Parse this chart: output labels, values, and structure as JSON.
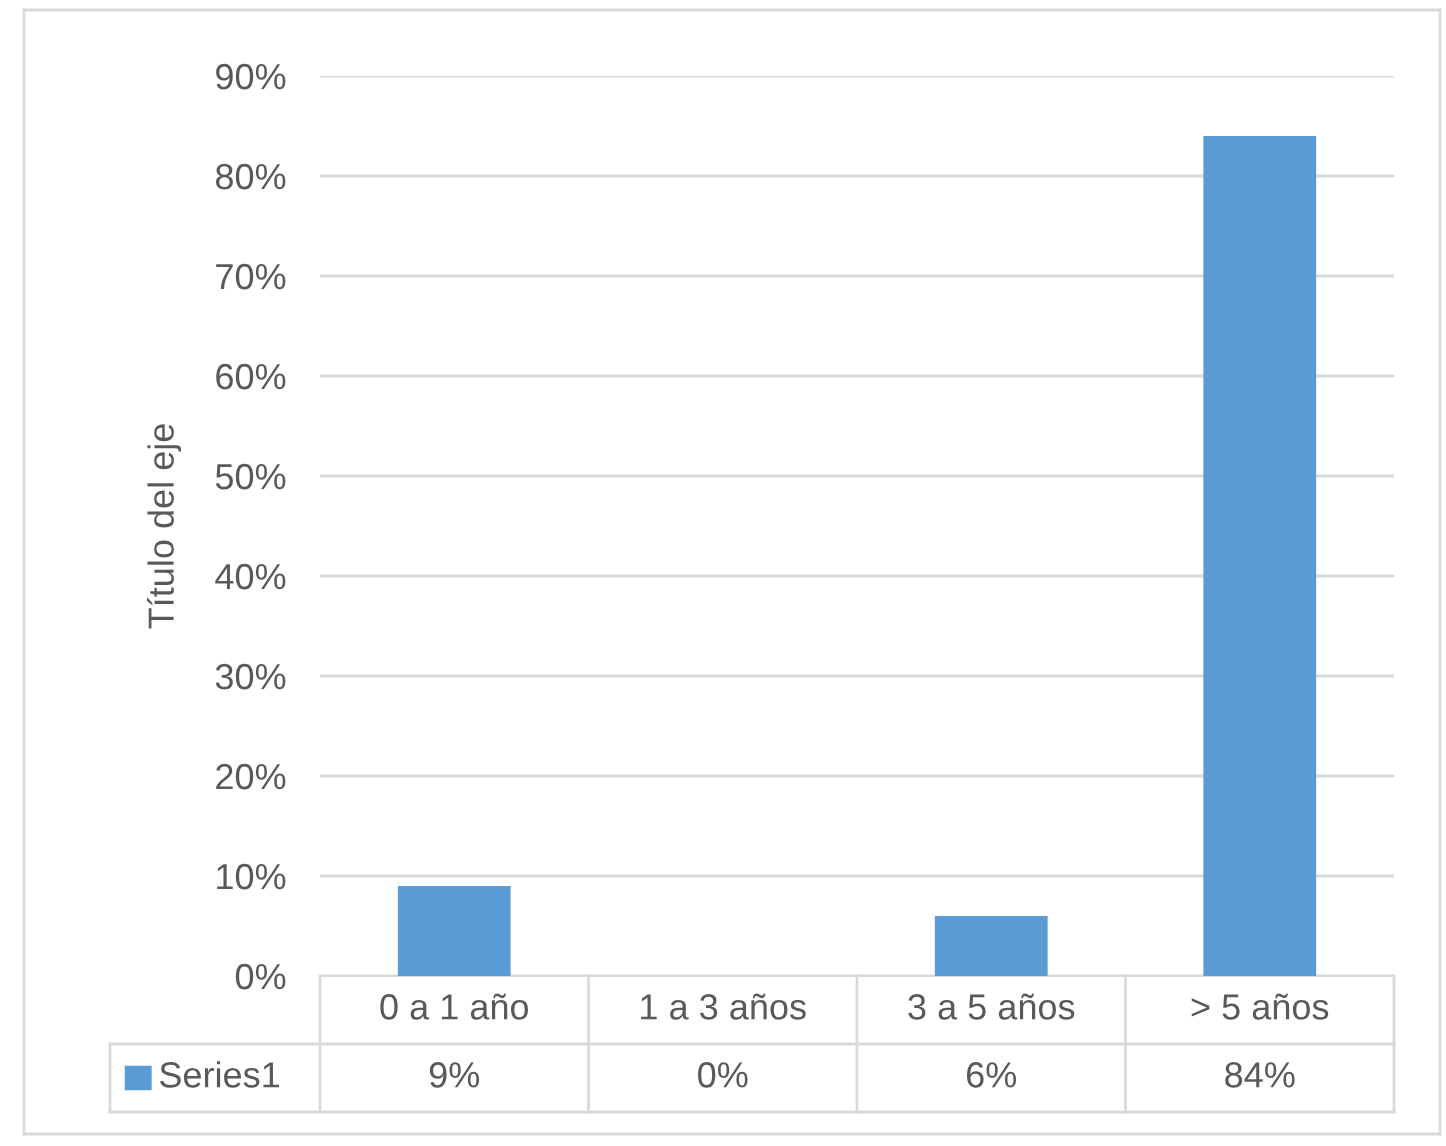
{
  "chart_data": {
    "type": "bar",
    "ylabel": "Título del eje",
    "categories": [
      "0 a 1 año",
      "1 a 3 años",
      "3 a 5 años",
      "> 5 años"
    ],
    "series": [
      {
        "name": "Series1",
        "color": "#5b9bd5",
        "values": [
          9,
          0,
          6,
          84
        ]
      }
    ],
    "value_labels": [
      "9%",
      "0%",
      "6%",
      "84%"
    ],
    "ylim": [
      0,
      90
    ],
    "yticks": [
      {
        "value": 0,
        "label": "0%"
      },
      {
        "value": 10,
        "label": "10%"
      },
      {
        "value": 20,
        "label": "20%"
      },
      {
        "value": 30,
        "label": "30%"
      },
      {
        "value": 40,
        "label": "40%"
      },
      {
        "value": 50,
        "label": "50%"
      },
      {
        "value": 60,
        "label": "60%"
      },
      {
        "value": 70,
        "label": "70%"
      },
      {
        "value": 80,
        "label": "80%"
      },
      {
        "value": 90,
        "label": "90%"
      }
    ],
    "grid": "y",
    "legend": "bottom"
  }
}
